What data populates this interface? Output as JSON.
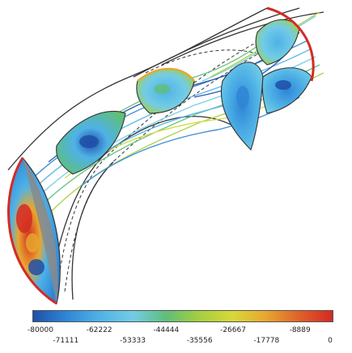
{
  "legend": {
    "ticks": [
      "-80000",
      "-71111",
      "-62222",
      "-53333",
      "-44444",
      "-35556",
      "-26667",
      "-17778",
      "-8889",
      "0"
    ],
    "colors": [
      "#1f4fa8",
      "#2f86d6",
      "#4fb2e6",
      "#73cce6",
      "#5fbf7a",
      "#a6cf3e",
      "#d8d83a",
      "#e8a62e",
      "#e0602a",
      "#d42a24"
    ]
  }
}
